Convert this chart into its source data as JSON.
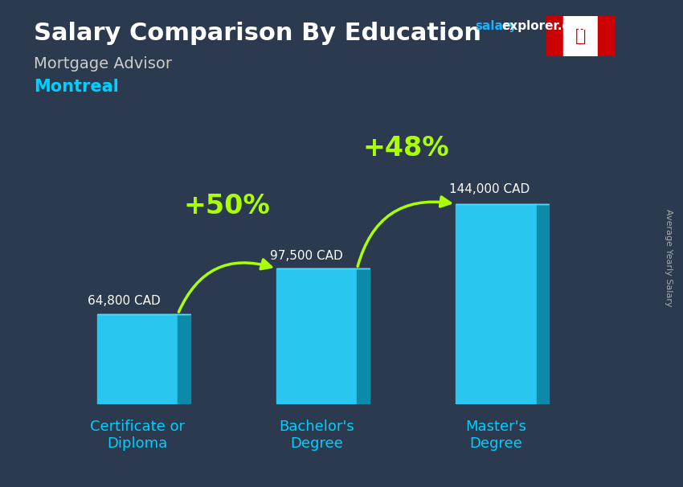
{
  "title": "Salary Comparison By Education",
  "subtitle_job": "Mortgage Advisor",
  "subtitle_city": "Montreal",
  "ylabel": "Average Yearly Salary",
  "categories": [
    "Certificate or\nDiploma",
    "Bachelor's\nDegree",
    "Master's\nDegree"
  ],
  "values": [
    64800,
    97500,
    144000
  ],
  "value_labels": [
    "64,800 CAD",
    "97,500 CAD",
    "144,000 CAD"
  ],
  "pct_labels": [
    "+50%",
    "+48%"
  ],
  "bar_color_face": "#29c6f0",
  "bar_color_side": "#0d8aaa",
  "bar_color_top": "#55d8f8",
  "bg_color": "#2b3a4e",
  "title_color": "#ffffff",
  "subtitle_job_color": "#cccccc",
  "subtitle_city_color": "#00cfff",
  "value_label_color": "#ffffff",
  "pct_color": "#aaff00",
  "xtick_color": "#00cfff",
  "website_blue": "#1ab0ff",
  "website_white": "#ffffff",
  "ylabel_color": "#aaaaaa",
  "figsize": [
    8.5,
    6.06
  ],
  "dpi": 100
}
